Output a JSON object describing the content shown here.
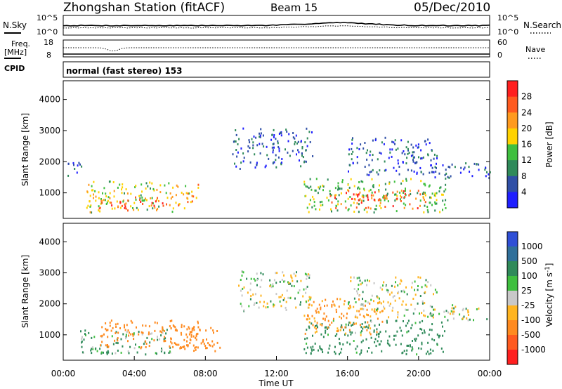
{
  "header": {
    "station": "Zhongshan Station (fitACF)",
    "beam": "Beam 15",
    "date": "05/Dec/2010"
  },
  "top_panel": {
    "left_label": "N.Sky",
    "right_label": "N.Search",
    "left_ticks": [
      "10^5",
      "10^0"
    ],
    "right_ticks": [
      "10^5",
      "10^0"
    ]
  },
  "freq_panel": {
    "left_label": "Freq.",
    "left_unit": "[MHz]",
    "right_label": "Nave",
    "left_ticks": [
      "18",
      "8"
    ],
    "right_ticks": [
      "60",
      "0"
    ]
  },
  "cpid_panel": {
    "label": "CPID",
    "mode_text": "normal (fast stereo) 153"
  },
  "colors": {
    "power_scale": [
      "#1f1fff",
      "#2f4fa6",
      "#2f8a5a",
      "#3fbf3f",
      "#ffd200",
      "#ff9a1f",
      "#ff5a1f",
      "#ff1f1f"
    ],
    "velocity_scale": [
      "#2f4fd6",
      "#2f6f9a",
      "#2f8a5a",
      "#3fbf3f",
      "#c8c8c8",
      "#ffb41f",
      "#ff8a1f",
      "#ff5a1f",
      "#ff1f1f"
    ]
  },
  "chart_data": [
    {
      "type": "heatmap",
      "name": "Power",
      "ylabel": "Slant Range [km]",
      "y_ticks": [
        "1000",
        "2000",
        "3000",
        "4000"
      ],
      "ylim": [
        180,
        4600
      ],
      "xlim": [
        0,
        24
      ],
      "colorbar_label": "Power [dB]",
      "colorbar_ticks": [
        "4",
        "8",
        "12",
        "16",
        "20",
        "24",
        "28"
      ],
      "color_range": [
        0,
        32
      ],
      "blobs": [
        {
          "t": [
            1.2,
            6.2
          ],
          "r": [
            400,
            1400
          ],
          "v": 16
        },
        {
          "t": [
            2.0,
            5.8
          ],
          "r": [
            450,
            900
          ],
          "v": 26
        },
        {
          "t": [
            6.0,
            7.6
          ],
          "r": [
            500,
            1300
          ],
          "v": 20
        },
        {
          "t": [
            0.2,
            1.0
          ],
          "r": [
            1400,
            2000
          ],
          "v": 6
        },
        {
          "t": [
            9.5,
            14.0
          ],
          "r": [
            1800,
            3100
          ],
          "v": 6
        },
        {
          "t": [
            13.5,
            21.5
          ],
          "r": [
            400,
            1500
          ],
          "v": 14
        },
        {
          "t": [
            15.0,
            20.5
          ],
          "r": [
            500,
            1100
          ],
          "v": 26
        },
        {
          "t": [
            16.0,
            21.0
          ],
          "r": [
            1600,
            2800
          ],
          "v": 6
        },
        {
          "t": [
            20.5,
            24.0
          ],
          "r": [
            1500,
            2000
          ],
          "v": 5
        }
      ]
    },
    {
      "type": "heatmap",
      "name": "Velocity",
      "ylabel": "Slant Range [km]",
      "xlabel": "Time UT",
      "x_ticks": [
        "00:00",
        "04:00",
        "08:00",
        "12:00",
        "16:00",
        "20:00",
        "00:00"
      ],
      "y_ticks": [
        "1000",
        "2000",
        "3000",
        "4000"
      ],
      "ylim": [
        180,
        4600
      ],
      "xlim": [
        0,
        24
      ],
      "colorbar_label": "Velocity [m s^-1]",
      "colorbar_ticks": [
        "1000",
        "500",
        "100",
        "25",
        "-25",
        "-100",
        "-500",
        "-1000"
      ],
      "blobs": [
        {
          "t": [
            0.8,
            6.0
          ],
          "r": [
            400,
            1200
          ],
          "v": 80
        },
        {
          "t": [
            2.0,
            8.0
          ],
          "r": [
            600,
            1500
          ],
          "v": -300
        },
        {
          "t": [
            6.0,
            8.8
          ],
          "r": [
            500,
            1300
          ],
          "v": -300
        },
        {
          "t": [
            9.8,
            14.0
          ],
          "r": [
            1800,
            3100
          ],
          "v": 0
        },
        {
          "t": [
            13.5,
            21.5
          ],
          "r": [
            400,
            1500
          ],
          "v": 150
        },
        {
          "t": [
            13.5,
            18.0
          ],
          "r": [
            1000,
            2200
          ],
          "v": -120
        },
        {
          "t": [
            16.0,
            21.0
          ],
          "r": [
            1600,
            2900
          ],
          "v": 0
        },
        {
          "t": [
            20.5,
            24.0
          ],
          "r": [
            1500,
            2000
          ],
          "v": 0
        }
      ]
    }
  ]
}
